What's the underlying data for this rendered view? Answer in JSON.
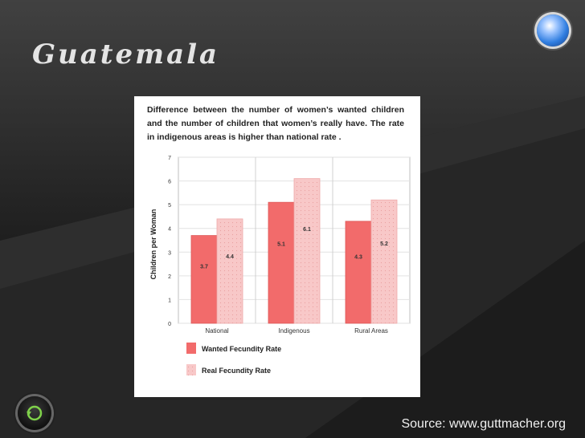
{
  "slide": {
    "title": "Guatemala",
    "source": "Source: www.guttmacher.org",
    "description": "Difference between the number of women’s wanted children and the number of children that women’s really have. The rate in indigenous areas is higher than national rate ."
  },
  "icons": {
    "orb": "glossy-orb-icon",
    "back": "return-arrow-icon"
  },
  "colors": {
    "wanted": "#f26b6b",
    "real": "#f8c8c8",
    "background": "#262626"
  },
  "chart_data": {
    "type": "bar",
    "title": "Difference between the number of women’s wanted children and the number of children that women’s really have. The rate in indigenous areas is higher than national rate .",
    "categories": [
      "National",
      "Indigenous",
      "Rural Areas"
    ],
    "series": [
      {
        "name": "Wanted Fecundity Rate",
        "values": [
          3.7,
          5.1,
          4.3
        ],
        "labels": [
          "3.7",
          "5.1",
          "4.3"
        ]
      },
      {
        "name": "Real Fecundity Rate",
        "values": [
          4.4,
          6.1,
          5.2
        ],
        "labels": [
          "4.4",
          "6.1",
          "5.2"
        ]
      }
    ],
    "ylabel": "Children per Woman",
    "xlabel": "",
    "ylim": [
      0,
      7
    ],
    "yticks": [
      "0",
      "1",
      "2",
      "3",
      "4",
      "5",
      "6",
      "7"
    ],
    "grid": true,
    "legend": "bottom"
  }
}
